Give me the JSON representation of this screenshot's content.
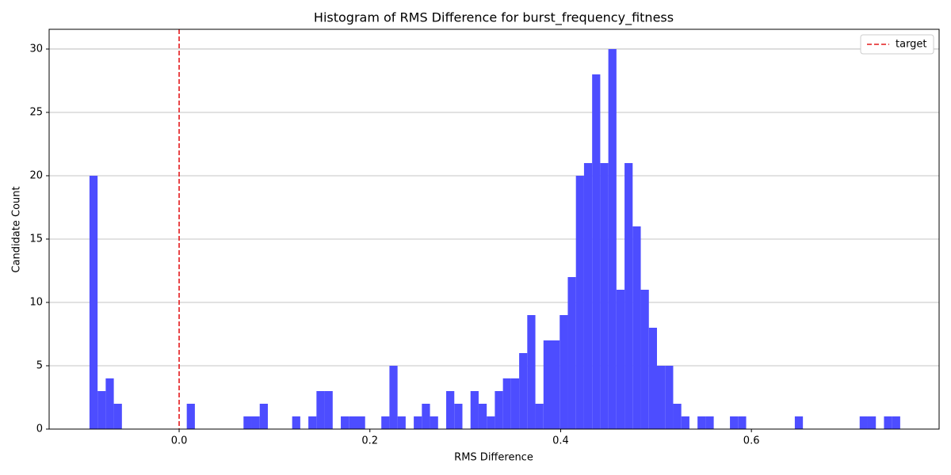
{
  "chart_data": {
    "type": "histogram",
    "title": "Histogram of RMS Difference for burst_frequency_fitness",
    "x_label": "RMS Difference",
    "y_label": "Candidate Count",
    "color": "#4d4dff",
    "bins": [
      -0.094,
      -0.0855,
      -0.077,
      -0.0685,
      -0.06,
      -0.0515,
      -0.043,
      -0.0345,
      -0.026,
      -0.0175,
      -0.009,
      -0.0005,
      0.008,
      0.0165,
      0.025,
      0.0335,
      0.042,
      0.0505,
      0.059,
      0.0675,
      0.076,
      0.0845,
      0.093,
      0.1015,
      0.11,
      0.1185,
      0.127,
      0.1355,
      0.144,
      0.1525,
      0.161,
      0.1695,
      0.178,
      0.1865,
      0.195,
      0.2035,
      0.212,
      0.2205,
      0.229,
      0.2375,
      0.246,
      0.2545,
      0.263,
      0.2715,
      0.28,
      0.2885,
      0.297,
      0.3055,
      0.314,
      0.3225,
      0.331,
      0.3395,
      0.348,
      0.3565,
      0.365,
      0.3735,
      0.382,
      0.3905,
      0.399,
      0.4075,
      0.416,
      0.4245,
      0.433,
      0.4415,
      0.45,
      0.4585,
      0.467,
      0.4755,
      0.484,
      0.4925,
      0.501,
      0.5095,
      0.518,
      0.5265,
      0.535,
      0.5435,
      0.552,
      0.5605,
      0.569,
      0.5775,
      0.586,
      0.5945,
      0.603,
      0.6115,
      0.62,
      0.6285,
      0.637,
      0.6455,
      0.654,
      0.6625,
      0.671,
      0.6795,
      0.688,
      0.6965,
      0.705,
      0.7135,
      0.722,
      0.7305,
      0.739,
      0.7475,
      0.756
    ],
    "counts": [
      20,
      3,
      4,
      2,
      0,
      0,
      0,
      0,
      0,
      0,
      0,
      0,
      2,
      0,
      0,
      0,
      0,
      0,
      0,
      1,
      1,
      2,
      0,
      0,
      0,
      1,
      0,
      1,
      3,
      3,
      0,
      1,
      1,
      1,
      0,
      0,
      1,
      5,
      1,
      0,
      1,
      2,
      1,
      0,
      3,
      2,
      0,
      3,
      2,
      1,
      3,
      4,
      4,
      6,
      9,
      2,
      7,
      7,
      9,
      12,
      20,
      21,
      28,
      21,
      30,
      11,
      21,
      16,
      11,
      8,
      5,
      5,
      2,
      1,
      0,
      1,
      1,
      0,
      0,
      1,
      1,
      0,
      0,
      0,
      0,
      0,
      0,
      1,
      0,
      0,
      0,
      0,
      0,
      0,
      0,
      1,
      1,
      0,
      1,
      1
    ],
    "vline": {
      "x": 0,
      "label": "target",
      "color": "#e41a1c"
    },
    "xlim": [
      -0.1363,
      0.7968
    ],
    "ylim": [
      0,
      31.56
    ],
    "xticks": [
      {
        "value": 0,
        "label": "0.0"
      },
      0.2,
      0.4,
      0.6
    ],
    "yticks": [
      0,
      5,
      10,
      15,
      20,
      25,
      30
    ],
    "grid": "y",
    "legend": "upper right"
  }
}
